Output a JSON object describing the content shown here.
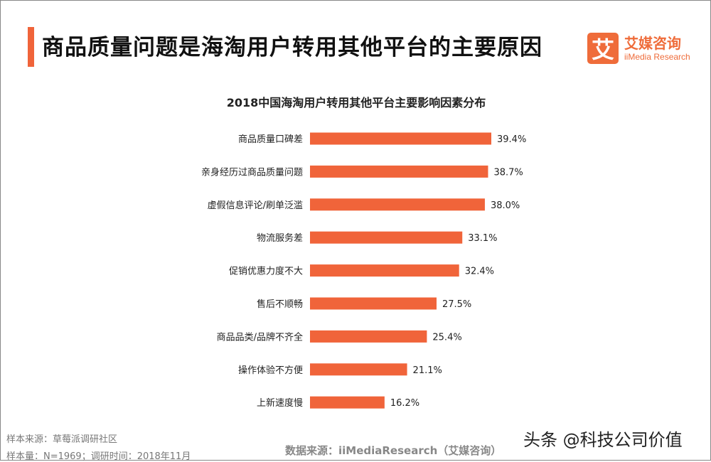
{
  "header": {
    "title": "商品质量问题是海淘用户转用其他平台的主要原因"
  },
  "logo": {
    "mark": "艾",
    "name_cn": "艾媒咨询",
    "name_en": "iiMedia Research"
  },
  "chart_data": {
    "type": "bar",
    "orientation": "horizontal",
    "title": "2018中国海淘用户转用其他平台主要影响因素分布",
    "categories": [
      "商品质量口碑差",
      "亲身经历过商品质量问题",
      "虚假信息评论/刷单泛滥",
      "物流服务差",
      "促销优惠力度不大",
      "售后不顺畅",
      "商品品类/品牌不齐全",
      "操作体验不方便",
      "上新速度慢"
    ],
    "values": [
      39.4,
      38.7,
      38.0,
      33.1,
      32.4,
      27.5,
      25.4,
      21.1,
      16.2
    ],
    "labels": [
      "39.4%",
      "38.7%",
      "38.0%",
      "33.1%",
      "32.4%",
      "27.5%",
      "25.4%",
      "21.1%",
      "16.2%"
    ],
    "unit": "%",
    "bar_color": "#f0643a",
    "grid": false,
    "legend": "none"
  },
  "footer": {
    "sample_source": "样本来源：草莓派调研社区",
    "sample_size": "样本量：N=1969；调研时间：2018年11月",
    "data_source": "数据来源：iiMediaResearch（艾媒咨询）",
    "watermark": "头条 @科技公司价值"
  }
}
